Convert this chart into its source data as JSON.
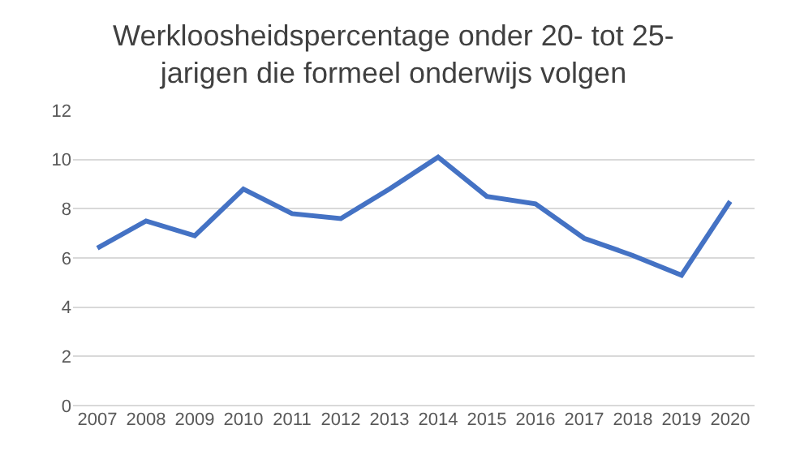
{
  "chart_data": {
    "type": "line",
    "title": "Werkloosheidspercentage onder 20- tot 25-jarigen die formeel onderwijs volgen",
    "categories": [
      "2007",
      "2008",
      "2009",
      "2010",
      "2011",
      "2012",
      "2013",
      "2014",
      "2015",
      "2016",
      "2017",
      "2018",
      "2019",
      "2020"
    ],
    "series": [
      {
        "color": "#4472c4",
        "values": [
          6.4,
          7.5,
          6.9,
          8.8,
          7.8,
          7.6,
          8.8,
          10.1,
          8.5,
          8.2,
          6.8,
          6.1,
          5.3,
          8.3
        ]
      }
    ],
    "ylim": [
      0,
      12
    ],
    "yticks": [
      0,
      2,
      4,
      6,
      8,
      10,
      12
    ],
    "grid": "y",
    "marker": "none",
    "line_style": "solid"
  }
}
